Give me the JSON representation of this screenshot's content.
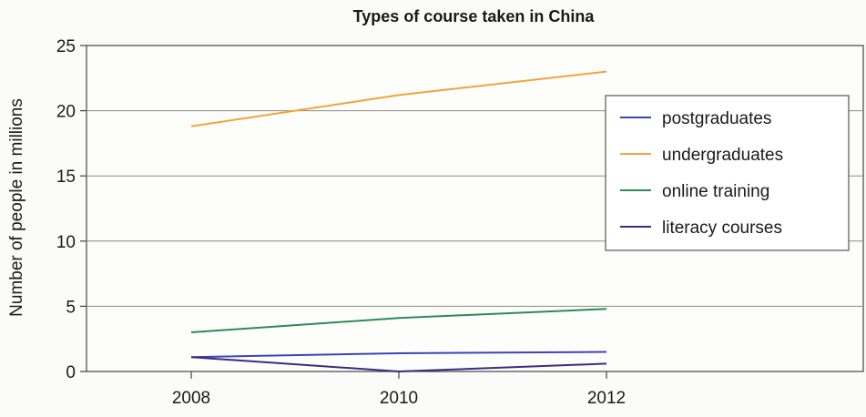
{
  "chart_data": {
    "type": "line",
    "title": "Types of course taken in China",
    "xlabel": "",
    "ylabel": "Number of people in millions",
    "x": [
      "2008",
      "2010",
      "2012"
    ],
    "ylim": [
      0,
      25
    ],
    "yticks": [
      0,
      5,
      10,
      15,
      20,
      25
    ],
    "grid": true,
    "legend_position": "top-right",
    "series": [
      {
        "name": "postgraduates",
        "color": "#3a45b8",
        "values": [
          1.1,
          1.4,
          1.5
        ]
      },
      {
        "name": "undergraduates",
        "color": "#f3a33a",
        "values": [
          18.8,
          21.2,
          23.0
        ]
      },
      {
        "name": "online training",
        "color": "#2e8a57",
        "values": [
          3.0,
          4.1,
          4.8
        ]
      },
      {
        "name": "literacy courses",
        "color": "#3b2d7a",
        "values": [
          1.1,
          0.0,
          0.6
        ]
      }
    ]
  }
}
